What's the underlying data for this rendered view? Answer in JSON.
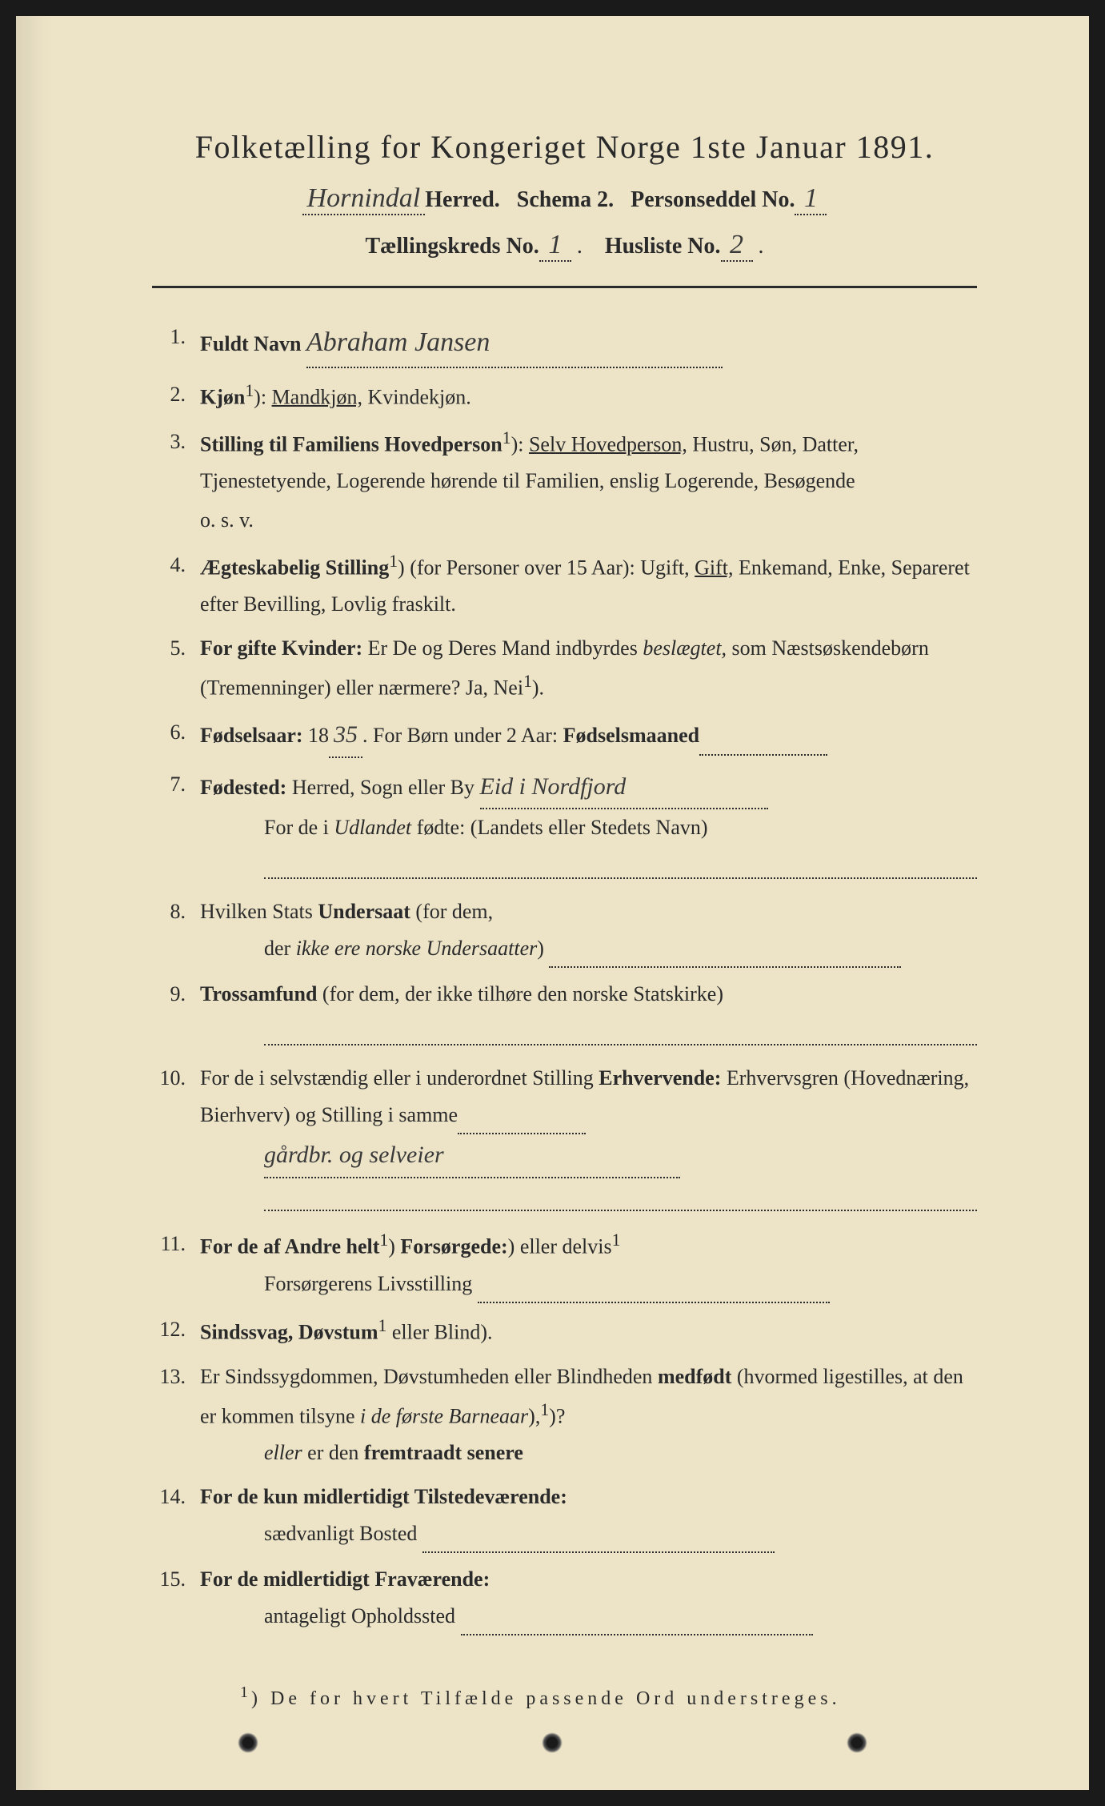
{
  "colors": {
    "page_bg": "#ede4c8",
    "text": "#2a2a2a",
    "frame": "#1a1a1a",
    "handwriting": "#3a3a3a"
  },
  "header": {
    "title": "Folketælling for Kongeriget Norge 1ste Januar 1891.",
    "herred_handwritten": "Hornindal",
    "herred_label": "Herred.",
    "schema_label": "Schema 2.",
    "personseddel_label": "Personseddel No.",
    "personseddel_no": "1",
    "kreds_label": "Tællingskreds No.",
    "kreds_no": "1",
    "husliste_label": "Husliste No.",
    "husliste_no": "2"
  },
  "items": [
    {
      "n": "1.",
      "label": "Fuldt Navn",
      "value_hw": "Abraham Jansen"
    },
    {
      "n": "2.",
      "label": "Kjøn",
      "sup": "1",
      "rest": "): ",
      "opt_underlined": "Mandkjøn,",
      "opt_rest": " Kvindekjøn."
    },
    {
      "n": "3.",
      "label": "Stilling til Familiens Hovedperson",
      "sup": "1",
      "rest": "): ",
      "opt_underlined": "Selv Hovedperson,",
      "cont": " Hustru, Søn, Datter, Tjenestetyende, Logerende hørende til Familien, enslig Logerende, Besøgende",
      "tail": "o. s. v."
    },
    {
      "n": "4.",
      "label": "Ægteskabelig Stilling",
      "sup": "1",
      "rest": ") (for Personer over 15 Aar): Ugift, ",
      "opt_underlined": "Gift,",
      "cont": " Enkemand, Enke, Separeret efter Bevilling, Lovlig fraskilt."
    },
    {
      "n": "5.",
      "label": "For gifte Kvinder:",
      "rest": " Er De og Deres Mand indbyrdes ",
      "ital": "beslægtet,",
      "cont": " som Næstsøskendebørn (Tremenninger) eller nærmere?  Ja, Nei",
      "sup2": "1",
      "tail2": ")."
    },
    {
      "n": "6.",
      "label": "Fødselsaar:",
      "rest": " 18",
      "hw_inline": "35",
      "rest2": ".   For Børn under 2 Aar: ",
      "label2": "Fødselsmaaned",
      "fill": true
    },
    {
      "n": "7.",
      "label": "Fødested:",
      "rest": " Herred, Sogn eller By",
      "hw_inline2": "Eid i Nordfjord",
      "line2": "For de i ",
      "ital2": "Udlandet",
      "line2b": " fødte: (Landets eller Stedets Navn)",
      "dotrow": true
    },
    {
      "n": "8.",
      "plain": "Hvilken Stats ",
      "label": "Undersaat",
      "rest": " (for dem,",
      "line2": "der ",
      "ital2": "ikke ere norske Undersaatter",
      "line2b": ")",
      "fill2": true
    },
    {
      "n": "9.",
      "label": "Trossamfund",
      "rest": "   (for  dem,  der  ikke  tilhøre  den  norske  Statskirke)",
      "dotrow": true
    },
    {
      "n": "10.",
      "plain": "For de i selvstændig eller i underordnet Stilling ",
      "label": "Erhvervende:",
      "rest": " Erhvervsgren (Hovednæring, Bierhverv) og Stilling i samme",
      "fill": true,
      "hw_row": "gårdbr. og selveier",
      "dotrow2": true
    },
    {
      "n": "11.",
      "label": "For de af Andre helt",
      "sup": "1",
      "mid": ") eller delvis",
      "sup2": "1",
      "rest": ") ",
      "label2": "Forsørgede:",
      "line2": "Forsørgerens Livsstilling",
      "fill2": true
    },
    {
      "n": "12.",
      "label": "Sindssvag, Døvstum",
      "rest": " eller Blind",
      "sup": "1",
      "tail2": ")."
    },
    {
      "n": "13.",
      "plain": "Er Sindssygdommen, Døvstumheden eller Blindheden ",
      "label": "medfødt",
      "rest": " (hvormed ligestilles, at den er kommen tilsyne ",
      "ital": "i de første Barneaar",
      "rest2": "),",
      "line2i": "eller",
      "line2": " er den ",
      "bold2": "fremtraadt senere",
      "sup2": "1",
      "tail2": ")?"
    },
    {
      "n": "14.",
      "label": "For de kun midlertidigt Tilstedeværende:",
      "line2": "sædvanligt Bosted",
      "fill2": true
    },
    {
      "n": "15.",
      "label": "For de midlertidigt Fraværende:",
      "line2": "antageligt Opholdssted",
      "fill2": true
    }
  ],
  "footnote": {
    "sup": "1",
    "text": ") De for hvert Tilfælde passende Ord understreges."
  }
}
